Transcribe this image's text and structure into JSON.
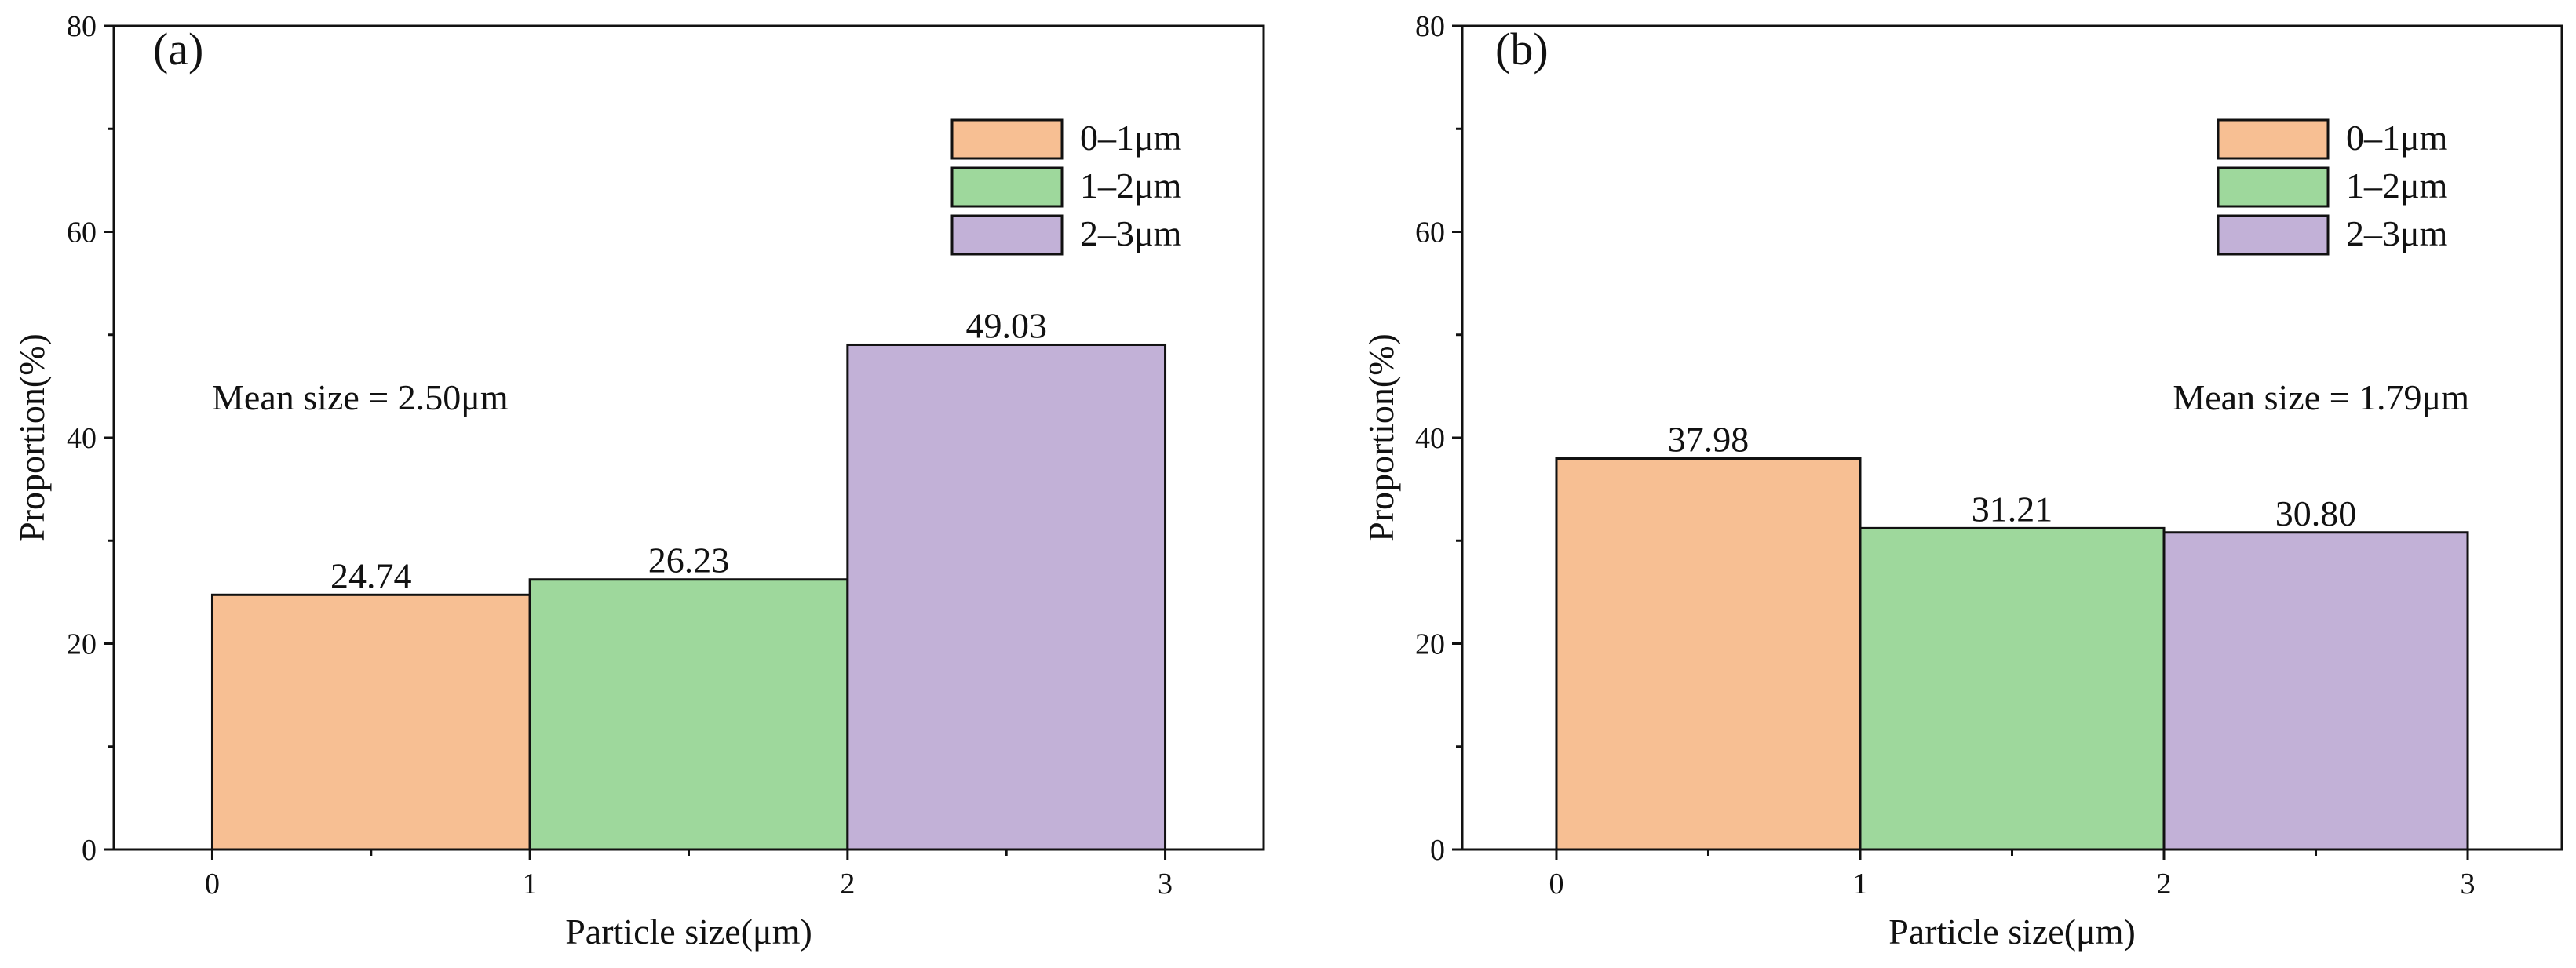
{
  "chart_data": [
    {
      "type": "bar",
      "panel_label": "(a)",
      "categories": [
        "0–1μm",
        "1–2μm",
        "2–3μm"
      ],
      "values": [
        24.74,
        26.23,
        49.03
      ],
      "value_labels": [
        "24.74",
        "26.23",
        "49.03"
      ],
      "bin_edges": [
        0,
        1,
        2,
        3
      ],
      "x_ticks": [
        "0",
        "1",
        "2",
        "3"
      ],
      "y_ticks": [
        "0",
        "20",
        "40",
        "60",
        "80"
      ],
      "xlim": [
        -0.31,
        3.31
      ],
      "ylim": [
        0,
        80
      ],
      "xlabel": "Particle size(μm)",
      "ylabel": "Proportion(%)",
      "annotation": "Mean size = 2.50μm",
      "legend_position": "top-right",
      "legend": [
        "0–1μm",
        "1–2μm",
        "2–3μm"
      ],
      "colors": [
        "#F7BF93",
        "#9ED89C",
        "#C2B1D7"
      ]
    },
    {
      "type": "bar",
      "panel_label": "(b)",
      "categories": [
        "0–1μm",
        "1–2μm",
        "2–3μm"
      ],
      "values": [
        37.98,
        31.21,
        30.8
      ],
      "value_labels": [
        "37.98",
        "31.21",
        "30.80"
      ],
      "bin_edges": [
        0,
        1,
        2,
        3
      ],
      "x_ticks": [
        "0",
        "1",
        "2",
        "3"
      ],
      "y_ticks": [
        "0",
        "20",
        "40",
        "60",
        "80"
      ],
      "xlim": [
        -0.31,
        3.31
      ],
      "ylim": [
        0,
        80
      ],
      "xlabel": "Particle size(μm)",
      "ylabel": "Proportion(%)",
      "annotation": "Mean size = 1.79μm",
      "legend_position": "top-right",
      "legend": [
        "0–1μm",
        "1–2μm",
        "2–3μm"
      ],
      "colors": [
        "#F7BF93",
        "#9ED89C",
        "#C2B1D7"
      ]
    }
  ]
}
